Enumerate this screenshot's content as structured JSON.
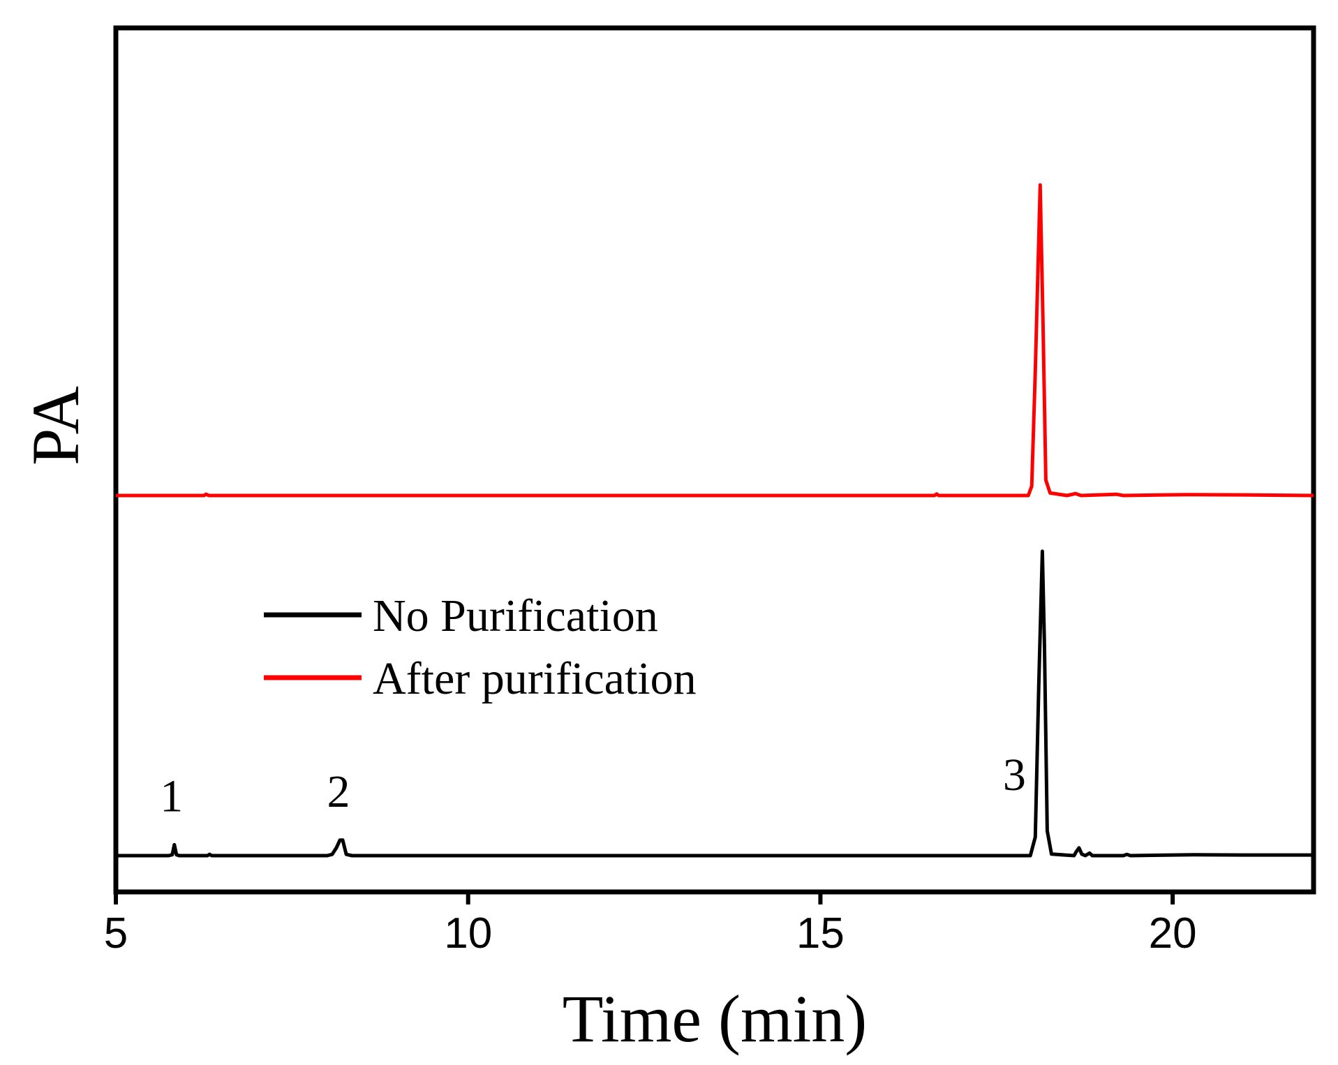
{
  "chart_data": {
    "type": "line",
    "title": "",
    "xlabel": "Time (min)",
    "ylabel": "PA",
    "xlim": [
      5,
      22
    ],
    "xticks": [
      5,
      10,
      15,
      20
    ],
    "y_tick_labels_shown": false,
    "grid": false,
    "legend_placement": "center-left",
    "series": [
      {
        "name": "No Purification",
        "color": "#000000",
        "baseline": 0,
        "points": [
          [
            5.0,
            0
          ],
          [
            5.75,
            0
          ],
          [
            5.8,
            0.003
          ],
          [
            5.83,
            0.035
          ],
          [
            5.86,
            0.003
          ],
          [
            5.9,
            0
          ],
          [
            6.3,
            0
          ],
          [
            6.33,
            0.004
          ],
          [
            6.36,
            0
          ],
          [
            8.0,
            0
          ],
          [
            8.07,
            0.004
          ],
          [
            8.13,
            0.025
          ],
          [
            8.18,
            0.05
          ],
          [
            8.22,
            0.05
          ],
          [
            8.27,
            0.004
          ],
          [
            8.35,
            0
          ],
          [
            17.98,
            0
          ],
          [
            18.05,
            0.06
          ],
          [
            18.1,
            0.55
          ],
          [
            18.15,
            0.98
          ],
          [
            18.18,
            0.68
          ],
          [
            18.22,
            0.08
          ],
          [
            18.28,
            0.005
          ],
          [
            18.6,
            0
          ],
          [
            18.63,
            0.012
          ],
          [
            18.67,
            0.025
          ],
          [
            18.71,
            0.005
          ],
          [
            18.76,
            0
          ],
          [
            18.82,
            0.008
          ],
          [
            18.86,
            0
          ],
          [
            19.3,
            0
          ],
          [
            19.35,
            0.004
          ],
          [
            19.4,
            0
          ],
          [
            20.3,
            0.003
          ],
          [
            21.0,
            0.002
          ],
          [
            22.0,
            0.002
          ]
        ]
      },
      {
        "name": "After purification",
        "color": "#ff0000",
        "baseline": 1,
        "points": [
          [
            5.0,
            0
          ],
          [
            6.25,
            0
          ],
          [
            6.28,
            0.004
          ],
          [
            6.32,
            0
          ],
          [
            16.62,
            0
          ],
          [
            16.65,
            0.005
          ],
          [
            16.68,
            0
          ],
          [
            17.95,
            0
          ],
          [
            18.0,
            0.03
          ],
          [
            18.05,
            0.4
          ],
          [
            18.12,
            1.0
          ],
          [
            18.16,
            0.55
          ],
          [
            18.2,
            0.05
          ],
          [
            18.26,
            0.008
          ],
          [
            18.5,
            0
          ],
          [
            18.62,
            0.006
          ],
          [
            18.7,
            0
          ],
          [
            19.2,
            0.004
          ],
          [
            19.3,
            0
          ],
          [
            20.2,
            0.003
          ],
          [
            21.0,
            0.002
          ],
          [
            22.0,
            0
          ]
        ]
      }
    ],
    "annotations": [
      {
        "text": "1",
        "x": 5.83
      },
      {
        "text": "2",
        "x": 8.2
      },
      {
        "text": "3",
        "x": 18.15
      }
    ]
  }
}
